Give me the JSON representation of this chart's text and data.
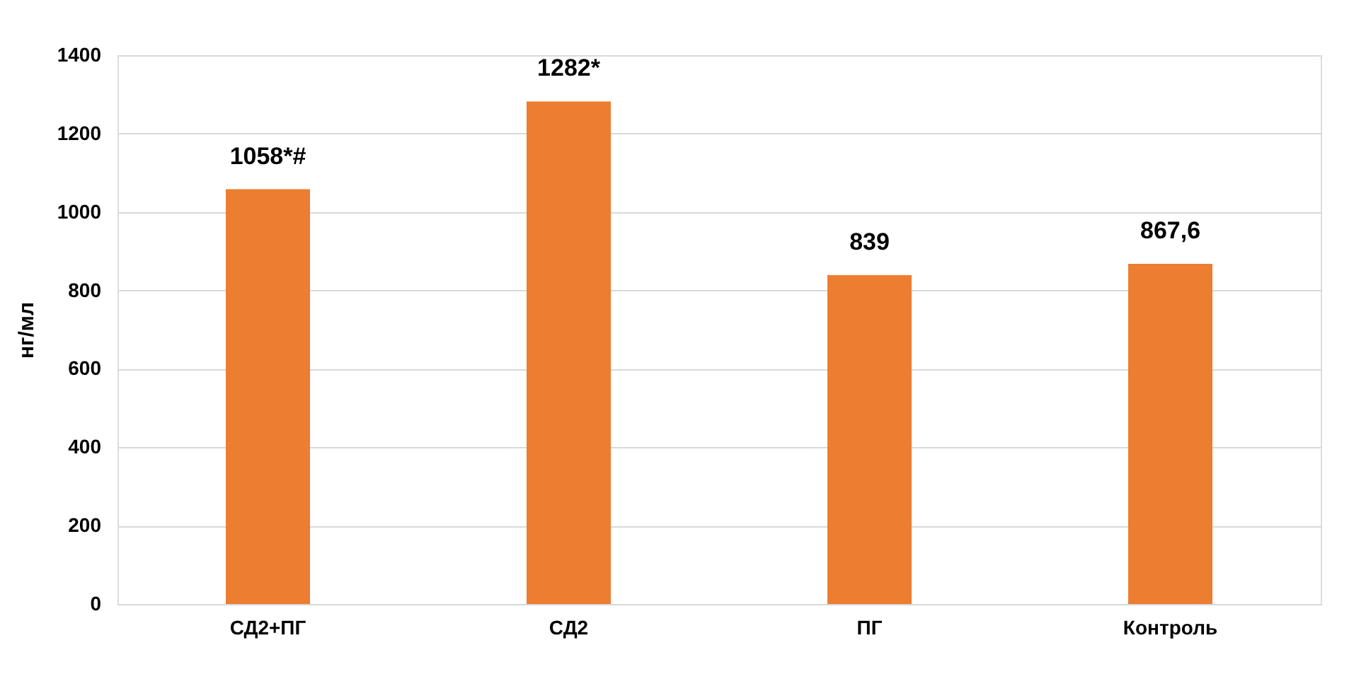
{
  "chart_data": {
    "type": "bar",
    "ylabel": "нг/мл",
    "categories": [
      "СД2+ПГ",
      "СД2",
      "ПГ",
      "Контроль"
    ],
    "values": [
      1058,
      1282,
      839,
      867.6
    ],
    "value_labels": [
      "1058*#",
      "1282*",
      "839",
      "867,6"
    ],
    "color": "#ed7d31",
    "ylim": [
      0,
      1400
    ],
    "yticks": [
      0,
      200,
      400,
      600,
      800,
      1000,
      1200,
      1400
    ],
    "grid": "y"
  }
}
